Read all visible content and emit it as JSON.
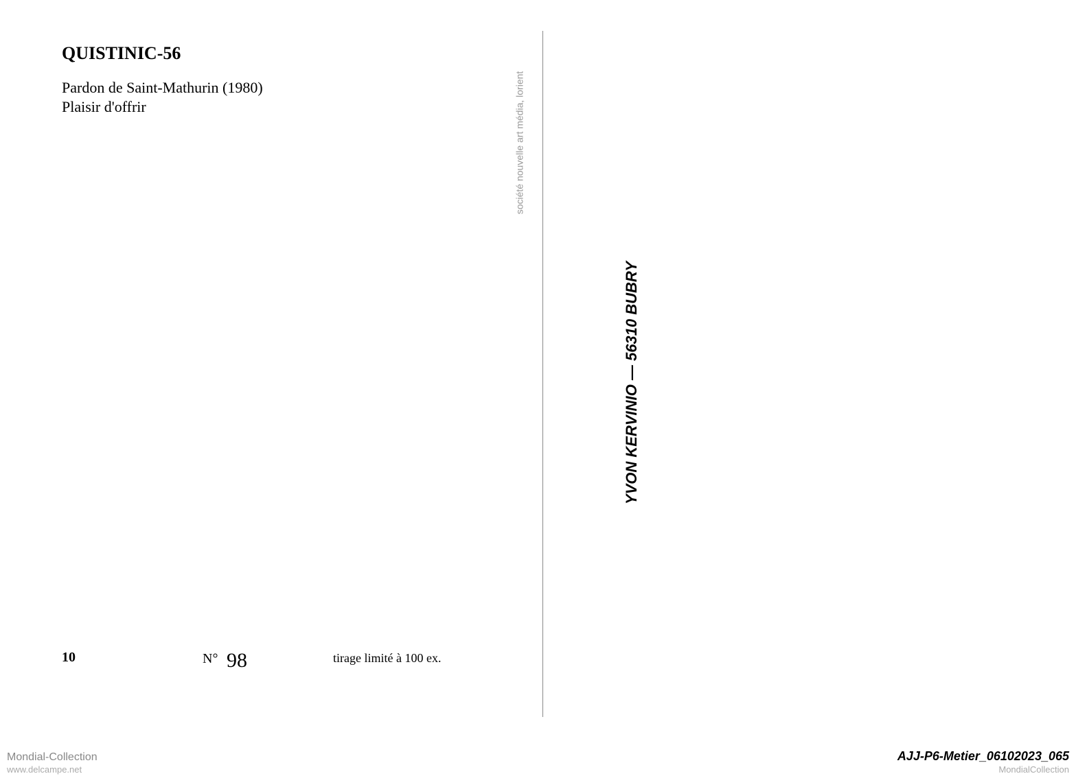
{
  "postcard": {
    "title": "QUISTINIC-56",
    "subtitle_line1": "Pardon de Saint-Mathurin (1980)",
    "subtitle_line2": "Plaisir d'offrir",
    "vertical_publisher": "YVON KERVINIO — 56310 BUBRY",
    "vertical_company": "société nouvelle art média, lorient",
    "bottom_left_number": "10",
    "edition_label": "N°",
    "edition_number": "98",
    "tirage": "tirage limité à 100 ex."
  },
  "footer": {
    "left_watermark": "Mondial-Collection",
    "left_url": "www.delcampe.net",
    "right_code": "AJJ-P6-Metier_06102023_065",
    "right_brand": "MondialCollection"
  },
  "colors": {
    "background": "#ffffff",
    "text_primary": "#000000",
    "text_secondary": "#999999",
    "text_watermark": "#888888",
    "text_url": "#aaaaaa",
    "divider": "#888888"
  },
  "typography": {
    "title_fontsize": 26,
    "subtitle_fontsize": 22,
    "vertical_main_fontsize": 22,
    "vertical_small_fontsize": 14,
    "edition_fontsize": 20,
    "handwritten_fontsize": 30,
    "footer_fontsize": 16
  }
}
